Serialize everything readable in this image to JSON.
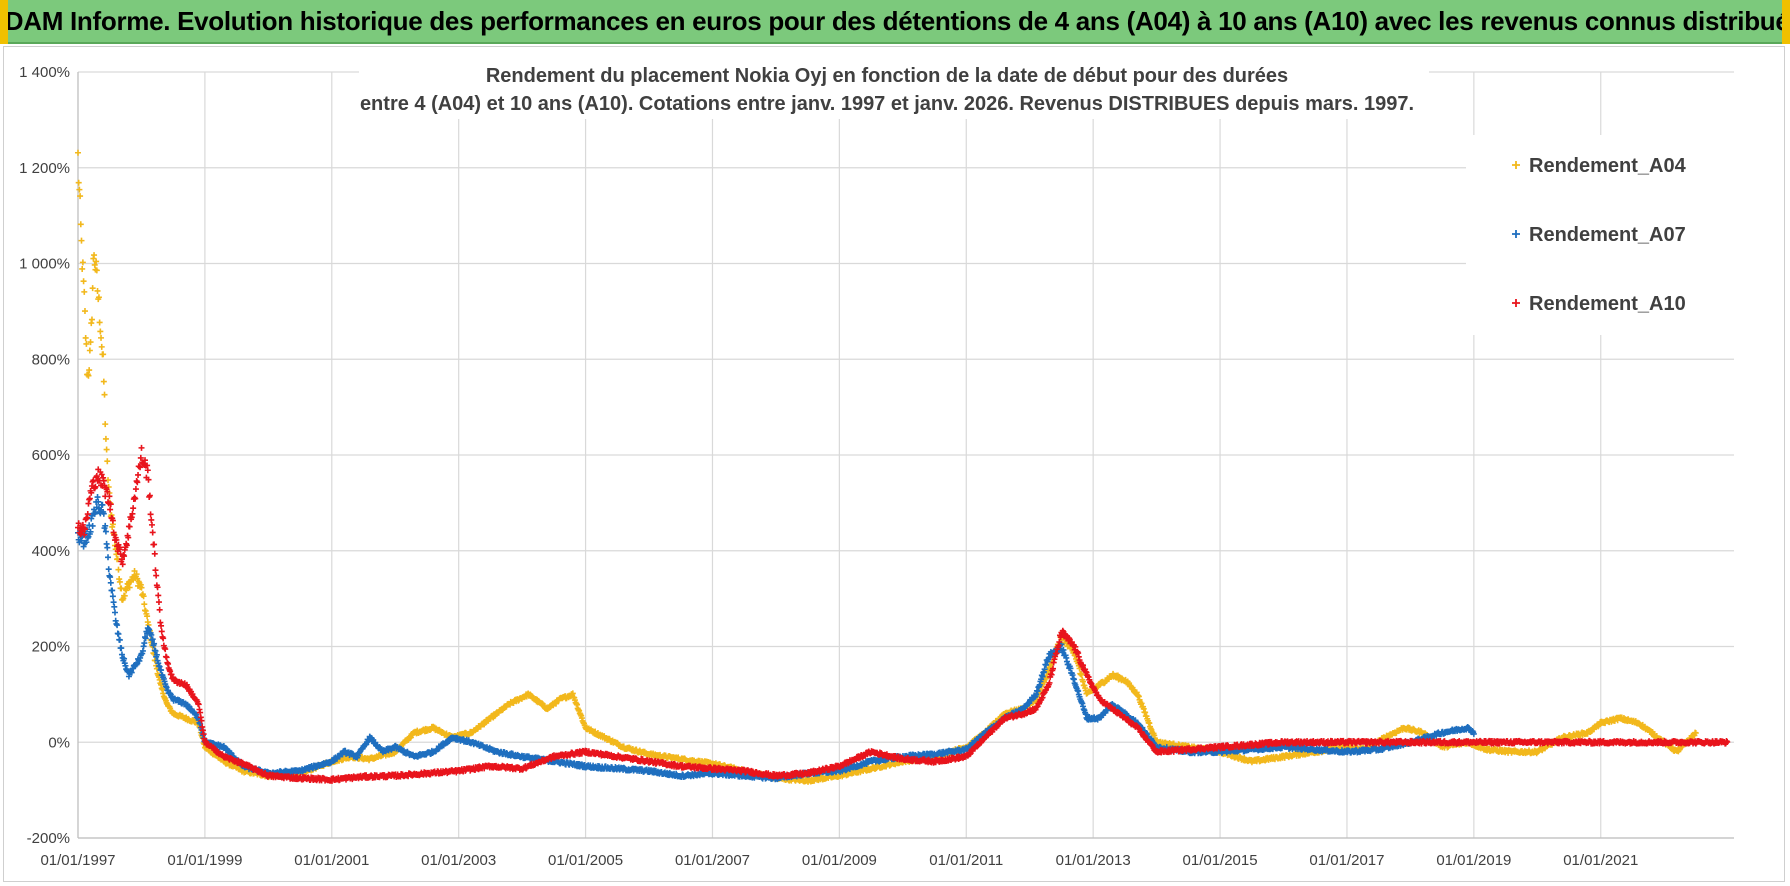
{
  "banner": {
    "title": "ADAM Informe. Evolution historique des performances en euros pour des détentions de 4 ans (A04) à 10 ans (A10) avec les revenus connus distribués"
  },
  "colors": {
    "banner_bg": "#7cc97c",
    "A04": "#f2b81c",
    "A07": "#1f6fbf",
    "A10": "#e8141c",
    "grid": "#d9d9d9"
  },
  "chart_data": {
    "type": "scatter",
    "title_line1": "Rendement du placement Nokia Oyj en fonction de la date de début pour des durées",
    "title_line2": "entre 4 (A04) et 10 ans (A10).  Cotations entre janv. 1997 et janv. 2026. Revenus DISTRIBUES depuis mars. 1997.",
    "xlabel": "",
    "ylabel": "",
    "x_range": [
      1997.0,
      2023.1
    ],
    "ylim": [
      -200,
      1400
    ],
    "y_ticks": [
      -200,
      0,
      200,
      400,
      600,
      800,
      1000,
      1200,
      1400
    ],
    "y_tick_labels": [
      "-200%",
      "0%",
      "200%",
      "400%",
      "600%",
      "800%",
      "1 000%",
      "1 200%",
      "1 400%"
    ],
    "x_ticks": [
      1997,
      1999,
      2001,
      2003,
      2005,
      2007,
      2009,
      2011,
      2013,
      2015,
      2017,
      2019,
      2021
    ],
    "x_tick_labels": [
      "01/01/1997",
      "01/01/1999",
      "01/01/2001",
      "01/01/2003",
      "01/01/2005",
      "01/01/2007",
      "01/01/2009",
      "01/01/2011",
      "01/01/2013",
      "01/01/2015",
      "01/01/2017",
      "01/01/2019",
      "01/01/2021"
    ],
    "grid": true,
    "legend_position": "top-right",
    "marker": "+",
    "series": [
      {
        "name": "Rendement_A04",
        "x": [
          1997.0,
          1997.05,
          1997.1,
          1997.15,
          1997.2,
          1997.25,
          1997.3,
          1997.35,
          1997.4,
          1997.45,
          1997.5,
          1997.6,
          1997.7,
          1997.8,
          1997.9,
          1998.0,
          1998.1,
          1998.2,
          1998.3,
          1998.4,
          1998.5,
          1998.7,
          1998.9,
          1999.0,
          1999.3,
          1999.6,
          2000.0,
          2000.5,
          2001.0,
          2001.3,
          2001.6,
          2002.0,
          2002.3,
          2002.6,
          2002.9,
          2003.2,
          2003.5,
          2003.8,
          2004.1,
          2004.4,
          2004.6,
          2004.8,
          2005.0,
          2005.3,
          2005.6,
          2006.0,
          2006.5,
          2007.0,
          2007.5,
          2008.0,
          2008.5,
          2009.0,
          2009.5,
          2010.0,
          2010.5,
          2011.0,
          2011.3,
          2011.6,
          2011.9,
          2012.1,
          2012.3,
          2012.5,
          2012.7,
          2012.9,
          2013.1,
          2013.3,
          2013.5,
          2013.7,
          2014.0,
          2014.5,
          2015.0,
          2015.5,
          2016.0,
          2016.5,
          2017.0,
          2017.3,
          2017.6,
          2017.9,
          2018.2,
          2018.5,
          2018.9,
          2019.2,
          2019.6,
          2020.0,
          2020.4,
          2020.8,
          2021.0,
          2021.3,
          2021.6,
          2021.9,
          2022.2,
          2022.5
        ],
        "values": [
          1220,
          1050,
          920,
          760,
          820,
          1030,
          960,
          880,
          780,
          600,
          500,
          400,
          300,
          330,
          350,
          320,
          250,
          180,
          120,
          80,
          60,
          50,
          40,
          -10,
          -40,
          -60,
          -70,
          -65,
          -40,
          -30,
          -35,
          -20,
          20,
          30,
          10,
          20,
          50,
          80,
          100,
          70,
          90,
          100,
          30,
          10,
          -10,
          -25,
          -35,
          -45,
          -60,
          -75,
          -80,
          -70,
          -55,
          -40,
          -30,
          -10,
          20,
          60,
          70,
          90,
          150,
          220,
          190,
          100,
          120,
          140,
          130,
          100,
          0,
          -10,
          -20,
          -40,
          -30,
          -20,
          -10,
          -15,
          10,
          30,
          20,
          -10,
          0,
          -15,
          -20,
          -20,
          10,
          20,
          40,
          50,
          40,
          10,
          -20,
          20
        ]
      },
      {
        "name": "Rendement_A07",
        "x": [
          1997.0,
          1997.1,
          1997.2,
          1997.3,
          1997.4,
          1997.5,
          1997.6,
          1997.7,
          1997.8,
          1997.9,
          1998.0,
          1998.1,
          1998.2,
          1998.3,
          1998.4,
          1998.5,
          1998.7,
          1998.9,
          1999.0,
          1999.3,
          1999.6,
          2000.0,
          2000.5,
          2001.0,
          2001.2,
          2001.4,
          2001.6,
          2001.8,
          2002.0,
          2002.3,
          2002.6,
          2002.9,
          2003.2,
          2003.6,
          2004.0,
          2004.5,
          2005.0,
          2005.5,
          2006.0,
          2006.5,
          2007.0,
          2007.5,
          2008.0,
          2008.5,
          2009.0,
          2009.5,
          2010.0,
          2010.5,
          2011.0,
          2011.3,
          2011.6,
          2011.9,
          2012.1,
          2012.3,
          2012.5,
          2012.7,
          2012.9,
          2013.1,
          2013.3,
          2013.5,
          2013.7,
          2014.0,
          2014.5,
          2015.0,
          2015.5,
          2016.0,
          2016.5,
          2017.0,
          2017.5,
          2018.0,
          2018.5,
          2018.9,
          2019.0
        ],
        "values": [
          430,
          420,
          450,
          500,
          480,
          350,
          250,
          180,
          140,
          160,
          180,
          240,
          200,
          150,
          110,
          90,
          80,
          50,
          0,
          -10,
          -50,
          -65,
          -60,
          -40,
          -20,
          -30,
          10,
          -20,
          -10,
          -30,
          -20,
          10,
          0,
          -20,
          -30,
          -40,
          -50,
          -55,
          -60,
          -70,
          -65,
          -70,
          -75,
          -65,
          -60,
          -40,
          -30,
          -25,
          -15,
          20,
          50,
          70,
          100,
          180,
          200,
          130,
          50,
          50,
          80,
          60,
          40,
          -10,
          -20,
          -20,
          -15,
          -10,
          -15,
          -20,
          -15,
          0,
          20,
          30,
          20
        ]
      },
      {
        "name": "Rendement_A10",
        "x": [
          1997.0,
          1997.1,
          1997.2,
          1997.3,
          1997.4,
          1997.5,
          1997.6,
          1997.7,
          1997.8,
          1997.9,
          1998.0,
          1998.1,
          1998.2,
          1998.3,
          1998.4,
          1998.5,
          1998.7,
          1998.9,
          1999.0,
          1999.3,
          1999.6,
          2000.0,
          2000.5,
          2001.0,
          2001.5,
          2002.0,
          2002.5,
          2003.0,
          2003.5,
          2004.0,
          2004.5,
          2005.0,
          2005.5,
          2006.0,
          2006.5,
          2007.0,
          2007.5,
          2008.0,
          2008.5,
          2009.0,
          2009.5,
          2010.0,
          2010.5,
          2011.0,
          2011.3,
          2011.6,
          2011.9,
          2012.1,
          2012.3,
          2012.5,
          2012.7,
          2012.9,
          2013.1,
          2013.3,
          2013.5,
          2013.7,
          2014.0,
          2014.5,
          2015.0,
          2015.5,
          2016.0,
          2016.5,
          2017.0,
          2017.5,
          2018.0,
          2018.5,
          2019.0,
          2019.5,
          2020.0,
          2020.5,
          2021.0,
          2021.5,
          2022.0,
          2022.5,
          2023.0
        ],
        "values": [
          450,
          440,
          520,
          560,
          540,
          500,
          420,
          380,
          440,
          520,
          600,
          560,
          400,
          250,
          170,
          130,
          120,
          80,
          0,
          -30,
          -45,
          -70,
          -75,
          -78,
          -72,
          -70,
          -65,
          -60,
          -50,
          -55,
          -30,
          -20,
          -30,
          -40,
          -50,
          -55,
          -60,
          -70,
          -65,
          -50,
          -20,
          -35,
          -40,
          -30,
          10,
          50,
          60,
          70,
          120,
          230,
          200,
          140,
          90,
          70,
          50,
          30,
          -20,
          -15,
          -10,
          -5,
          0,
          0,
          0,
          0,
          0,
          0,
          0,
          0,
          0,
          0,
          0,
          0,
          0,
          0,
          0
        ]
      }
    ]
  }
}
